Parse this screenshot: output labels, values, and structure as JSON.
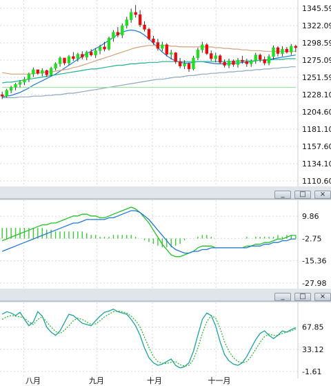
{
  "chart_data": [
    {
      "type": "candlestick",
      "title": "",
      "y_ticks": [
        "1345.59",
        "1322.09",
        "1298.59",
        "1275.09",
        "1251.59",
        "1228.10",
        "1204.60",
        "1181.10",
        "1157.60",
        "1134.10",
        "1110.60"
      ],
      "ylim": [
        1110.6,
        1345.59
      ],
      "month_labels": [
        "八月",
        "九月",
        "十月",
        "十一月"
      ],
      "grid": true,
      "candles": [
        [
          1228,
          1232,
          1222,
          1226
        ],
        [
          1226,
          1236,
          1224,
          1234
        ],
        [
          1234,
          1240,
          1230,
          1238
        ],
        [
          1238,
          1244,
          1234,
          1242
        ],
        [
          1242,
          1248,
          1238,
          1245
        ],
        [
          1245,
          1252,
          1241,
          1249
        ],
        [
          1249,
          1258,
          1245,
          1256
        ],
        [
          1256,
          1265,
          1252,
          1262
        ],
        [
          1262,
          1260,
          1255,
          1257
        ],
        [
          1257,
          1264,
          1253,
          1261
        ],
        [
          1261,
          1262,
          1252,
          1255
        ],
        [
          1255,
          1266,
          1253,
          1264
        ],
        [
          1264,
          1272,
          1261,
          1270
        ],
        [
          1270,
          1280,
          1266,
          1278
        ],
        [
          1278,
          1276,
          1268,
          1271
        ],
        [
          1271,
          1282,
          1268,
          1280
        ],
        [
          1280,
          1286,
          1274,
          1277
        ],
        [
          1277,
          1285,
          1273,
          1283
        ],
        [
          1283,
          1287,
          1276,
          1279
        ],
        [
          1279,
          1288,
          1275,
          1286
        ],
        [
          1286,
          1290,
          1280,
          1282
        ],
        [
          1282,
          1291,
          1278,
          1288
        ],
        [
          1288,
          1296,
          1283,
          1293
        ],
        [
          1293,
          1300,
          1287,
          1290
        ],
        [
          1290,
          1307,
          1288,
          1305
        ],
        [
          1305,
          1316,
          1300,
          1313
        ],
        [
          1313,
          1320,
          1306,
          1309
        ],
        [
          1309,
          1325,
          1305,
          1322
        ],
        [
          1322,
          1334,
          1318,
          1330
        ],
        [
          1330,
          1345,
          1326,
          1340
        ],
        [
          1340,
          1350,
          1333,
          1337
        ],
        [
          1337,
          1343,
          1320,
          1323
        ],
        [
          1323,
          1328,
          1314,
          1317
        ],
        [
          1317,
          1319,
          1302,
          1304
        ],
        [
          1304,
          1308,
          1296,
          1299
        ],
        [
          1299,
          1304,
          1288,
          1291
        ],
        [
          1291,
          1300,
          1287,
          1296
        ],
        [
          1296,
          1298,
          1280,
          1283
        ],
        [
          1283,
          1289,
          1276,
          1285
        ],
        [
          1285,
          1286,
          1270,
          1273
        ],
        [
          1273,
          1278,
          1264,
          1267
        ],
        [
          1267,
          1275,
          1263,
          1270
        ],
        [
          1270,
          1272,
          1259,
          1263
        ],
        [
          1263,
          1281,
          1261,
          1278
        ],
        [
          1278,
          1292,
          1275,
          1289
        ],
        [
          1289,
          1300,
          1285,
          1296
        ],
        [
          1296,
          1298,
          1282,
          1284
        ],
        [
          1284,
          1288,
          1274,
          1277
        ],
        [
          1277,
          1285,
          1272,
          1281
        ],
        [
          1281,
          1283,
          1270,
          1272
        ],
        [
          1272,
          1276,
          1265,
          1268
        ],
        [
          1268,
          1277,
          1264,
          1274
        ],
        [
          1274,
          1276,
          1266,
          1269
        ],
        [
          1269,
          1278,
          1265,
          1275
        ],
        [
          1275,
          1281,
          1270,
          1273
        ],
        [
          1273,
          1277,
          1266,
          1270
        ],
        [
          1270,
          1276,
          1266,
          1274
        ],
        [
          1274,
          1285,
          1270,
          1282
        ],
        [
          1282,
          1284,
          1272,
          1276
        ],
        [
          1276,
          1280,
          1268,
          1271
        ],
        [
          1271,
          1283,
          1268,
          1280
        ],
        [
          1280,
          1295,
          1276,
          1292
        ],
        [
          1292,
          1294,
          1280,
          1284
        ],
        [
          1284,
          1294,
          1280,
          1290
        ],
        [
          1290,
          1293,
          1284,
          1286
        ],
        [
          1286,
          1297,
          1282,
          1294
        ],
        [
          1294,
          1296,
          1286,
          1292
        ]
      ],
      "overlays": [
        {
          "name": "",
          "color": "#1f77d4",
          "values": [
            1225,
            1226,
            1227,
            1229,
            1231,
            1234,
            1237,
            1241,
            1244,
            1247,
            1250,
            1253,
            1256,
            1260,
            1264,
            1268,
            1272,
            1276,
            1280,
            1284,
            1287,
            1291,
            1294,
            1298,
            1302,
            1306,
            1310,
            1313,
            1315,
            1316,
            1315,
            1313,
            1309,
            1304,
            1298,
            1292,
            1286,
            1281,
            1277,
            1274,
            1272,
            1271,
            1271,
            1272,
            1273,
            1273,
            1272,
            1271,
            1270,
            1270,
            1270,
            1270,
            1271,
            1271,
            1272,
            1272,
            1273,
            1274,
            1275,
            1275,
            1276,
            1277,
            1278,
            1279,
            1280,
            1281,
            1282
          ]
        },
        {
          "name": "",
          "color": "#d4a27a",
          "values": [
            1258,
            1257,
            1256,
            1256,
            1256,
            1256,
            1256,
            1257,
            1257,
            1258,
            1259,
            1259,
            1260,
            1261,
            1262,
            1263,
            1265,
            1266,
            1268,
            1270,
            1272,
            1274,
            1276,
            1278,
            1280,
            1282,
            1284,
            1286,
            1288,
            1290,
            1292,
            1293,
            1294,
            1295,
            1295,
            1295,
            1295,
            1295,
            1294,
            1294,
            1293,
            1293,
            1293,
            1293,
            1293,
            1293,
            1293,
            1293,
            1292,
            1292,
            1291,
            1291,
            1290,
            1290,
            1289,
            1289,
            1288,
            1288,
            1288,
            1287,
            1287,
            1287,
            1287,
            1287,
            1287,
            1287,
            1287
          ]
        },
        {
          "name": "",
          "color": "#20b28c",
          "values": [
            1244,
            1245,
            1245,
            1246,
            1247,
            1248,
            1249,
            1250,
            1251,
            1252,
            1253,
            1254,
            1255,
            1256,
            1257,
            1258,
            1259,
            1260,
            1261,
            1262,
            1263,
            1263,
            1264,
            1265,
            1266,
            1267,
            1268,
            1268,
            1269,
            1270,
            1270,
            1271,
            1271,
            1272,
            1272,
            1272,
            1273,
            1273,
            1273,
            1273,
            1273,
            1273,
            1273,
            1273,
            1273,
            1273,
            1273,
            1273,
            1273,
            1273,
            1273,
            1273,
            1273,
            1274,
            1274,
            1274,
            1274,
            1274,
            1275,
            1275,
            1275,
            1276,
            1276,
            1276,
            1277,
            1277,
            1277
          ]
        },
        {
          "name": "",
          "color": "#8aa7c4",
          "values": [
            1224,
            1224,
            1224,
            1224,
            1225,
            1225,
            1225,
            1226,
            1226,
            1226,
            1227,
            1227,
            1228,
            1228,
            1229,
            1230,
            1230,
            1231,
            1232,
            1233,
            1234,
            1235,
            1236,
            1237,
            1238,
            1239,
            1240,
            1241,
            1242,
            1243,
            1244,
            1245,
            1246,
            1247,
            1248,
            1249,
            1249,
            1250,
            1251,
            1252,
            1252,
            1253,
            1254,
            1254,
            1255,
            1256,
            1256,
            1257,
            1257,
            1258,
            1258,
            1259,
            1259,
            1260,
            1260,
            1261,
            1261,
            1262,
            1262,
            1263,
            1263,
            1264,
            1264,
            1265,
            1265,
            1266,
            1266
          ]
        },
        {
          "name": "",
          "color": "#9fe0a8",
          "values": [
            1238,
            1238,
            1238,
            1238,
            1238,
            1238,
            1238,
            1238,
            1238,
            1238,
            1238,
            1238,
            1238,
            1238,
            1238,
            1238,
            1238,
            1238,
            1238,
            1238,
            1238,
            1238,
            1238,
            1238,
            1238,
            1238,
            1238,
            1238,
            1238,
            1238,
            1238,
            1238,
            1238,
            1238,
            1238,
            1238,
            1238,
            1238,
            1238,
            1238,
            1238,
            1238,
            1238,
            1238,
            1238,
            1238,
            1238,
            1238,
            1238,
            1238,
            1238,
            1238,
            1238,
            1238,
            1238,
            1238,
            1238,
            1238,
            1238,
            1238,
            1238,
            1238,
            1238,
            1238,
            1238,
            1238,
            1238
          ]
        }
      ]
    },
    {
      "type": "line",
      "title": "",
      "y_ticks": [
        "9.86",
        "-2.75",
        "-15.36",
        "-27.98"
      ],
      "ylim": [
        -27.98,
        15
      ],
      "grid": true,
      "series": [
        {
          "name": "",
          "color": "#22c122",
          "values": [
            -4,
            -3,
            -2,
            -1,
            0,
            1,
            2,
            3,
            4,
            5,
            5,
            6,
            6,
            7,
            8,
            9,
            10,
            10,
            11,
            11,
            10,
            10,
            9,
            9,
            10,
            11,
            12,
            13,
            14,
            15,
            14,
            12,
            9,
            6,
            2,
            -2,
            -6,
            -9,
            -12,
            -13,
            -13,
            -12,
            -11,
            -10,
            -8,
            -7,
            -7,
            -7,
            -8,
            -8,
            -8,
            -8,
            -8,
            -8,
            -8,
            -7,
            -7,
            -6,
            -6,
            -5,
            -5,
            -4,
            -3,
            -3,
            -2,
            -1,
            -1
          ]
        },
        {
          "name": "",
          "color": "#1f77d4",
          "values": [
            -10,
            -9,
            -8,
            -7,
            -6,
            -5,
            -4,
            -3,
            -2,
            -1,
            0,
            1,
            2,
            3,
            4,
            5,
            6,
            6,
            7,
            8,
            8,
            8,
            8,
            8,
            9,
            9,
            10,
            11,
            12,
            13,
            13,
            12,
            10,
            8,
            5,
            2,
            -1,
            -4,
            -7,
            -9,
            -10,
            -11,
            -11,
            -10,
            -10,
            -9,
            -9,
            -8,
            -8,
            -8,
            -8,
            -8,
            -8,
            -8,
            -8,
            -8,
            -7,
            -7,
            -7,
            -6,
            -6,
            -5,
            -5,
            -4,
            -4,
            -3,
            -3
          ]
        }
      ],
      "histogram": {
        "color": "#33cc33",
        "values": [
          6,
          6,
          6,
          6,
          6,
          6,
          6,
          6,
          6,
          6,
          5,
          5,
          4,
          4,
          4,
          4,
          4,
          4,
          4,
          3,
          2,
          2,
          1,
          1,
          1,
          2,
          2,
          2,
          2,
          2,
          1,
          0,
          -1,
          -2,
          -3,
          -4,
          -5,
          -5,
          -5,
          -4,
          -3,
          -1,
          0,
          0,
          1,
          2,
          2,
          1,
          0,
          0,
          0,
          0,
          0,
          0,
          0,
          1,
          0,
          1,
          1,
          1,
          1,
          1,
          2,
          1,
          2,
          2,
          2
        ]
      }
    },
    {
      "type": "line",
      "title": "",
      "y_ticks": [
        "67.85",
        "33.12",
        "-1.61"
      ],
      "ylim": [
        -1.61,
        100
      ],
      "grid": true,
      "series": [
        {
          "name": "",
          "color": "#1aa0a0",
          "values": [
            88,
            92,
            90,
            86,
            91,
            80,
            70,
            76,
            92,
            85,
            68,
            60,
            55,
            62,
            75,
            88,
            86,
            80,
            74,
            72,
            70,
            78,
            85,
            91,
            93,
            96,
            92,
            90,
            88,
            80,
            70,
            55,
            35,
            20,
            12,
            8,
            10,
            14,
            18,
            8,
            4,
            6,
            12,
            30,
            55,
            80,
            90,
            86,
            70,
            45,
            25,
            15,
            10,
            8,
            12,
            22,
            35,
            48,
            58,
            62,
            55,
            50,
            55,
            62,
            60,
            64,
            67
          ]
        },
        {
          "name": "",
          "color": "#2db82d",
          "values": [
            80,
            84,
            86,
            85,
            84,
            82,
            76,
            72,
            80,
            84,
            76,
            68,
            61,
            58,
            63,
            70,
            78,
            82,
            80,
            76,
            72,
            73,
            78,
            84,
            88,
            92,
            93,
            92,
            90,
            85,
            78,
            68,
            52,
            36,
            22,
            14,
            11,
            11,
            13,
            14,
            9,
            7,
            8,
            17,
            35,
            58,
            76,
            86,
            82,
            66,
            45,
            30,
            20,
            14,
            12,
            14,
            22,
            33,
            44,
            53,
            57,
            55,
            55,
            58,
            60,
            62,
            65
          ]
        }
      ]
    }
  ],
  "window_buttons": [
    "_",
    "□",
    "×"
  ]
}
